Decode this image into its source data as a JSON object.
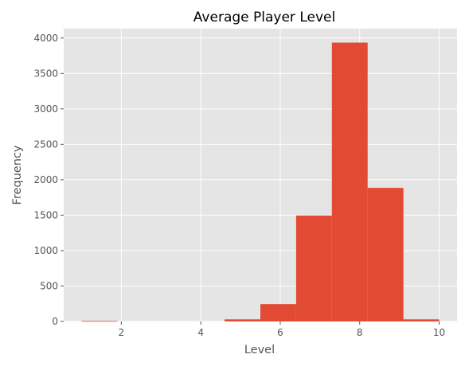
{
  "chart_data": {
    "type": "bar",
    "title": "Average Player Level",
    "xlabel": "Level",
    "ylabel": "Frequency",
    "bins": [
      {
        "x0": 1.0,
        "x1": 1.9,
        "value": 6
      },
      {
        "x0": 1.9,
        "x1": 2.8,
        "value": 0
      },
      {
        "x0": 2.8,
        "x1": 3.7,
        "value": 0
      },
      {
        "x0": 3.7,
        "x1": 4.6,
        "value": 0
      },
      {
        "x0": 4.6,
        "x1": 5.5,
        "value": 30
      },
      {
        "x0": 5.5,
        "x1": 6.4,
        "value": 245
      },
      {
        "x0": 6.4,
        "x1": 7.3,
        "value": 1495
      },
      {
        "x0": 7.3,
        "x1": 8.2,
        "value": 3935
      },
      {
        "x0": 8.2,
        "x1": 9.1,
        "value": 1885
      },
      {
        "x0": 9.1,
        "x1": 10.0,
        "value": 30
      }
    ],
    "xlim": [
      0.55,
      10.45
    ],
    "ylim": [
      0,
      4132
    ],
    "xticks": [
      2,
      4,
      6,
      8,
      10
    ],
    "yticks": [
      0,
      500,
      1000,
      1500,
      2000,
      2500,
      3000,
      3500,
      4000
    ],
    "grid": true,
    "colors": {
      "bar": "#E24A33",
      "background": "#E5E5E5",
      "grid": "#FFFFFF"
    }
  }
}
